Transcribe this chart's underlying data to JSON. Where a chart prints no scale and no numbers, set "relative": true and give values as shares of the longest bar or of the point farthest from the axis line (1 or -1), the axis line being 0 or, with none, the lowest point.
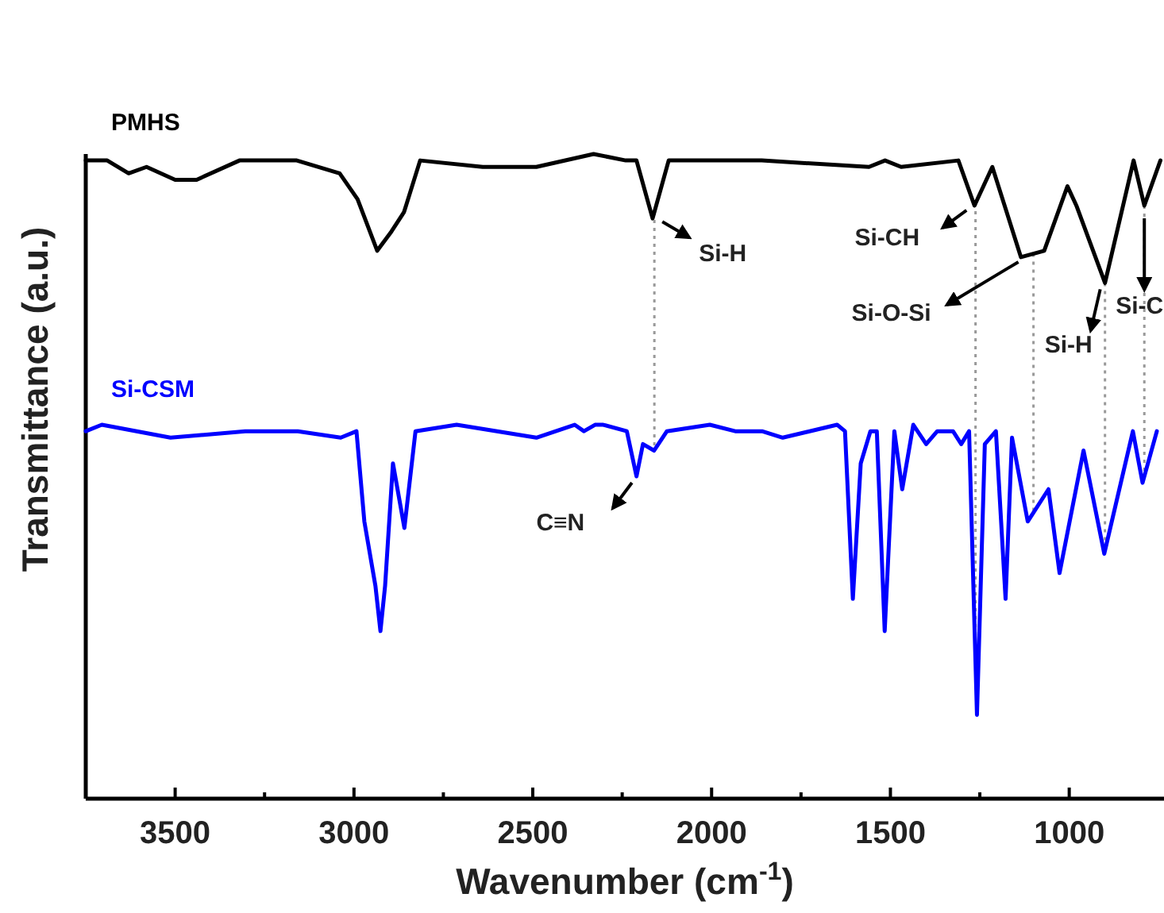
{
  "chart_data": {
    "type": "line",
    "relative": true,
    "xlabel": "Wavenumber (cm$^{-1}$)",
    "ylabel": "Transmittance (a.u.)",
    "xlim": [
      3750,
      735
    ],
    "xticks": [
      3500,
      {
        "value": 3250,
        "label": null
      },
      3000,
      {
        "value": 2750,
        "label": null
      },
      2500,
      {
        "value": 2250,
        "label": null
      },
      2000,
      {
        "value": 1750,
        "label": null
      },
      1500,
      {
        "value": 1250,
        "label": null
      },
      1000
    ],
    "legend": false,
    "grid": false,
    "tick_labels": "x",
    "line_style": "solid",
    "marker": "none",
    "series": [
      {
        "name": "PMHS",
        "color": "#000000",
        "x": [
          3750,
          3690,
          3630,
          3580,
          3500,
          3440,
          3320,
          3160,
          3040,
          2990,
          2935,
          2895,
          2860,
          2815,
          2640,
          2490,
          2330,
          2240,
          2210,
          2165,
          2120,
          1860,
          1560,
          1515,
          1470,
          1310,
          1265,
          1215,
          1135,
          1070,
          1005,
          980,
          900,
          820,
          790,
          745
        ],
        "values": [
          0.99,
          0.99,
          0.97,
          0.98,
          0.96,
          0.96,
          0.99,
          0.99,
          0.97,
          0.93,
          0.85,
          0.88,
          0.91,
          0.99,
          0.98,
          0.98,
          1.0,
          0.99,
          0.99,
          0.9,
          0.99,
          0.99,
          0.98,
          0.99,
          0.98,
          0.99,
          0.92,
          0.98,
          0.84,
          0.85,
          0.95,
          0.92,
          0.8,
          0.99,
          0.92,
          0.99
        ]
      },
      {
        "name": "Si-CSM",
        "color": "#0000ff",
        "x": [
          3750,
          3705,
          3513,
          3304,
          3157,
          3037,
          2993,
          2971,
          2940,
          2926,
          2913,
          2891,
          2859,
          2828,
          2713,
          2490,
          2383,
          2357,
          2326,
          2303,
          2237,
          2210,
          2192,
          2161,
          2125,
          2005,
          1934,
          1859,
          1801,
          1649,
          1627,
          1605,
          1583,
          1556,
          1538,
          1516,
          1489,
          1467,
          1436,
          1400,
          1369,
          1325,
          1302,
          1280,
          1258,
          1236,
          1205,
          1178,
          1160,
          1116,
          1058,
          1027,
          960,
          902,
          822,
          795,
          755
        ],
        "values": [
          0.57,
          0.58,
          0.56,
          0.57,
          0.57,
          0.56,
          0.57,
          0.43,
          0.33,
          0.26,
          0.33,
          0.52,
          0.42,
          0.57,
          0.58,
          0.56,
          0.58,
          0.57,
          0.58,
          0.58,
          0.57,
          0.5,
          0.55,
          0.54,
          0.57,
          0.58,
          0.57,
          0.57,
          0.56,
          0.58,
          0.57,
          0.31,
          0.52,
          0.57,
          0.57,
          0.26,
          0.57,
          0.48,
          0.58,
          0.55,
          0.57,
          0.57,
          0.55,
          0.57,
          0.13,
          0.55,
          0.57,
          0.31,
          0.56,
          0.43,
          0.48,
          0.35,
          0.54,
          0.38,
          0.57,
          0.49,
          0.57
        ]
      }
    ],
    "ref_lines": [
      {
        "axis": "x",
        "value": 2160,
        "color": "#999999",
        "line_style": "dotted"
      },
      {
        "axis": "x",
        "value": 1262,
        "color": "#999999",
        "line_style": "dotted"
      },
      {
        "axis": "x",
        "value": 1100,
        "color": "#999999",
        "line_style": "dotted"
      },
      {
        "axis": "x",
        "value": 900,
        "color": "#999999",
        "line_style": "dotted"
      },
      {
        "axis": "x",
        "value": 790,
        "color": "#999999",
        "line_style": "dotted"
      }
    ],
    "annotations": [
      {
        "text": "Si-H",
        "x": 2160,
        "y": 0.9
      },
      {
        "text": "Si-CH",
        "x": 1265,
        "y": 0.92
      },
      {
        "text": "Si-O-Si",
        "x": 1120,
        "y": 0.84
      },
      {
        "text": "Si-H",
        "x": 900,
        "y": 0.8
      },
      {
        "text": "Si-C",
        "x": 790,
        "y": 0.92
      },
      {
        "text": "C≡N",
        "x": 2205,
        "y": 0.5
      }
    ]
  }
}
